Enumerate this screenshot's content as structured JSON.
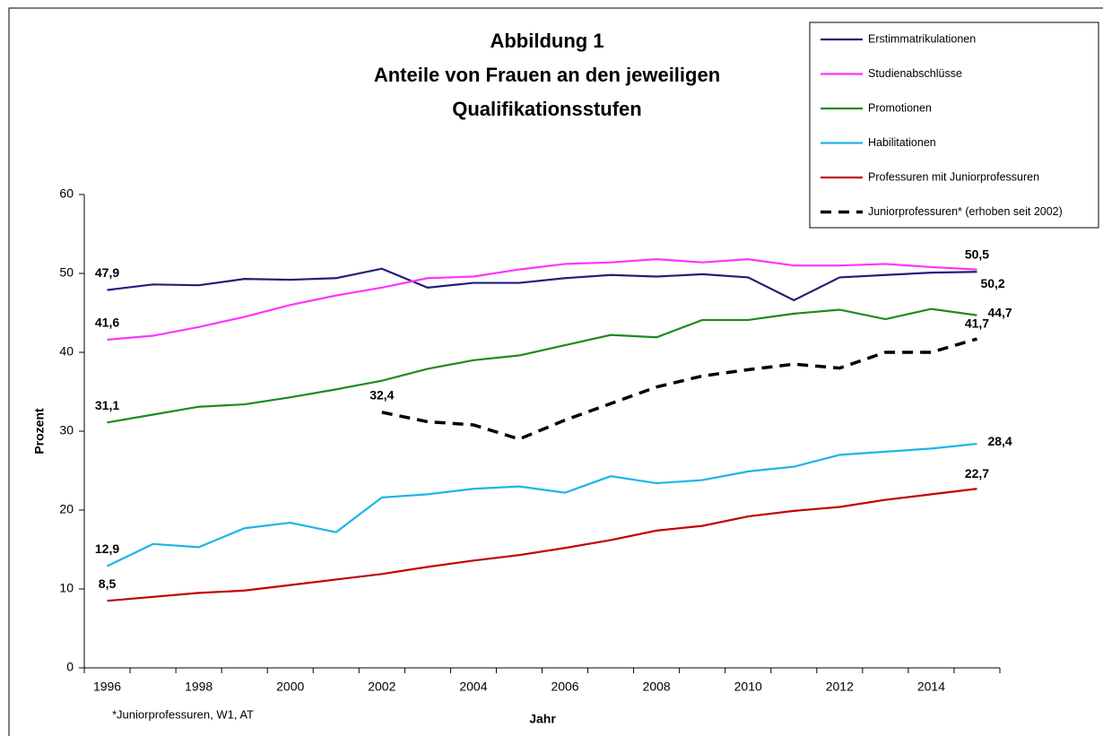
{
  "chart_data": {
    "type": "line",
    "title": [
      "Abbildung 1",
      "Anteile von Frauen an den jeweiligen",
      "Qualifikationsstufen"
    ],
    "y_label": "Prozent",
    "x_label": "Jahr",
    "footnote": "*Juniorprofessuren, W1, AT",
    "categories": [
      "1996",
      null,
      "1998",
      null,
      "2000",
      null,
      "2002",
      null,
      "2004",
      null,
      "2006",
      null,
      "2008",
      null,
      "2010",
      null,
      "2012",
      null,
      "2014",
      null
    ],
    "ylim": [
      0,
      60
    ],
    "yticks": [
      0,
      10,
      20,
      30,
      40,
      50,
      60
    ],
    "grid": false,
    "legend": "upper right",
    "series": [
      {
        "name": "Erstimmatrikulationen",
        "color": "#1f1f7a",
        "dash": false,
        "values": [
          47.9,
          48.6,
          48.5,
          49.3,
          49.2,
          49.4,
          50.6,
          48.2,
          48.8,
          48.8,
          49.4,
          49.8,
          49.6,
          49.9,
          49.5,
          46.6,
          49.5,
          49.8,
          50.1,
          50.2
        ],
        "value_labels": [
          "47,9",
          null,
          null,
          null,
          null,
          null,
          null,
          null,
          null,
          null,
          null,
          null,
          null,
          null,
          null,
          null,
          null,
          null,
          null,
          "50,2"
        ]
      },
      {
        "name": "Studienabschlüsse",
        "color": "#ff33ff",
        "dash": false,
        "values": [
          41.6,
          42.1,
          43.2,
          44.5,
          46.0,
          47.2,
          48.2,
          49.4,
          49.6,
          50.5,
          51.2,
          51.4,
          51.8,
          51.4,
          51.8,
          51.0,
          51.0,
          51.2,
          50.8,
          50.5
        ],
        "value_labels": [
          "41,6",
          null,
          null,
          null,
          null,
          null,
          null,
          null,
          null,
          null,
          null,
          null,
          null,
          null,
          null,
          null,
          null,
          null,
          null,
          "50,5"
        ]
      },
      {
        "name": "Promotionen",
        "color": "#1e8a1e",
        "dash": false,
        "values": [
          31.1,
          32.1,
          33.1,
          33.4,
          34.3,
          35.3,
          36.4,
          37.9,
          39.0,
          39.6,
          40.9,
          42.2,
          41.9,
          44.1,
          44.1,
          44.9,
          45.4,
          44.2,
          45.5,
          44.7
        ],
        "value_labels": [
          "31,1",
          null,
          null,
          null,
          null,
          null,
          null,
          null,
          null,
          null,
          null,
          null,
          null,
          null,
          null,
          null,
          null,
          null,
          null,
          "44,7"
        ]
      },
      {
        "name": "Habilitationen",
        "color": "#1eb4e6",
        "dash": false,
        "values": [
          12.9,
          15.7,
          15.3,
          17.7,
          18.4,
          17.2,
          21.6,
          22.0,
          22.7,
          23.0,
          22.2,
          24.3,
          23.4,
          23.8,
          24.9,
          25.5,
          27.0,
          27.4,
          27.8,
          28.4
        ],
        "value_labels": [
          "12,9",
          null,
          null,
          null,
          null,
          null,
          null,
          null,
          null,
          null,
          null,
          null,
          null,
          null,
          null,
          null,
          null,
          null,
          null,
          "28,4"
        ]
      },
      {
        "name": "Professuren mit Juniorprofessuren",
        "color": "#c00000",
        "dash": false,
        "values": [
          8.5,
          9.0,
          9.5,
          9.8,
          10.5,
          11.2,
          11.9,
          12.8,
          13.6,
          14.3,
          15.2,
          16.2,
          17.4,
          18.0,
          19.2,
          19.9,
          20.4,
          21.3,
          22.0,
          22.7
        ],
        "value_labels": [
          "8,5",
          null,
          null,
          null,
          null,
          null,
          null,
          null,
          null,
          null,
          null,
          null,
          null,
          null,
          null,
          null,
          null,
          null,
          null,
          "22,7"
        ]
      },
      {
        "name": "Juniorprofessuren* (erhoben seit 2002)",
        "color": "#000000",
        "dash": true,
        "values": [
          null,
          null,
          null,
          null,
          null,
          null,
          32.4,
          31.2,
          30.8,
          29.0,
          31.4,
          33.5,
          35.6,
          37.0,
          37.8,
          38.5,
          38.0,
          40.0,
          40.0,
          41.7
        ],
        "value_labels": [
          null,
          null,
          null,
          null,
          null,
          null,
          "32,4",
          null,
          null,
          null,
          null,
          null,
          null,
          null,
          null,
          null,
          null,
          null,
          null,
          "41,7"
        ]
      }
    ]
  }
}
